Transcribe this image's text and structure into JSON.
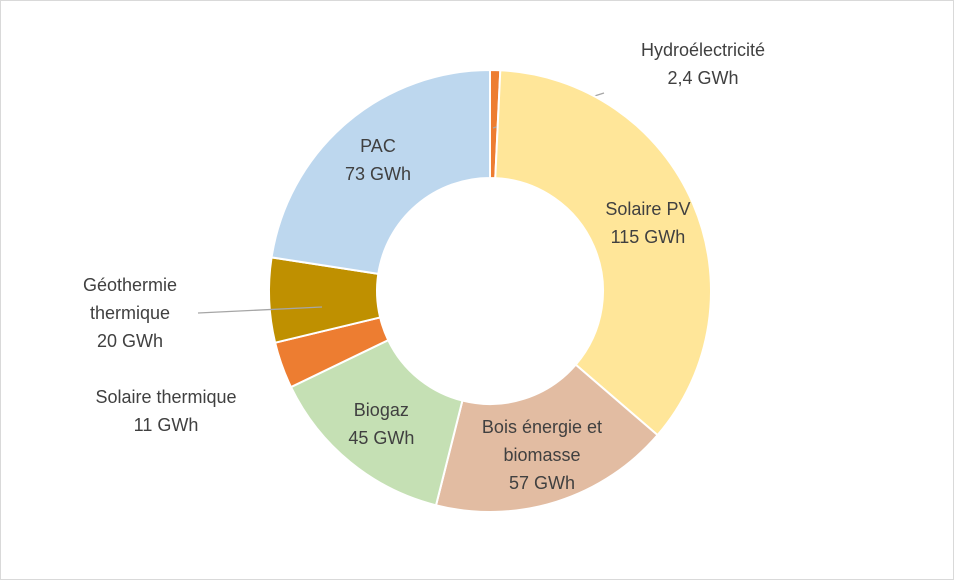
{
  "chart_data": {
    "type": "donut",
    "categories": [
      "Hydroélectricité",
      "Solaire PV",
      "Bois énergie et biomasse",
      "Biogaz",
      "Solaire thermique",
      "Géothermie thermique",
      "PAC"
    ],
    "values": [
      2.4,
      115,
      57,
      45,
      11,
      20,
      73
    ],
    "value_labels": [
      "2,4 GWh",
      "115 GWh",
      "57 GWh",
      "45 GWh",
      "11 GWh",
      "20 GWh",
      "73 GWh"
    ],
    "colors": [
      "#ed7d31",
      "#ffe699",
      "#e2bca2",
      "#c5e0b4",
      "#ed7d31",
      "#bf9000",
      "#bdd7ee"
    ]
  }
}
